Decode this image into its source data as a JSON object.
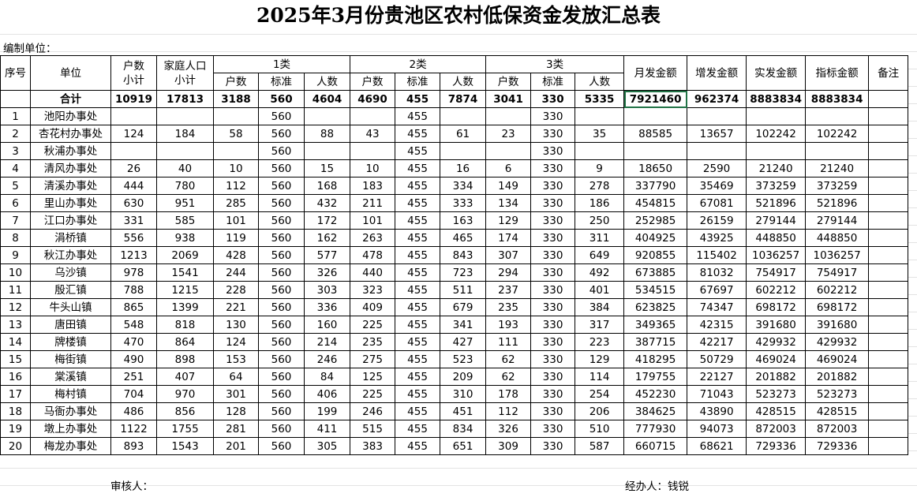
{
  "header": {
    "title": "2025年3月份贵池区农村低保资金发放汇总表",
    "unit_label": "编制单位：",
    "columns": {
      "seq": "序号",
      "unit": "单位",
      "households": [
        "户数",
        "小计"
      ],
      "population": [
        "家庭人口",
        "小计"
      ],
      "classes": [
        {
          "name": "1类",
          "sub": [
            "户数",
            "标准",
            "人数"
          ]
        },
        {
          "name": "2类",
          "sub": [
            "户数",
            "标准",
            "人数"
          ]
        },
        {
          "name": "3类",
          "sub": [
            "户数",
            "标准",
            "人数"
          ]
        }
      ],
      "amounts": [
        "月发金额",
        "增发金额",
        "实发金额",
        "指标金额"
      ],
      "remark": "备注"
    }
  },
  "table": {
    "total": {
      "label": "合计",
      "values": [
        10919,
        17813,
        3188,
        560,
        4604,
        4690,
        455,
        7874,
        3041,
        330,
        5335,
        7921460,
        962374,
        8883834,
        8883834
      ]
    },
    "rows": [
      {
        "no": 1,
        "unit": "池阳办事处",
        "values": [
          null,
          null,
          null,
          560,
          null,
          null,
          455,
          null,
          null,
          330,
          null,
          null,
          null,
          null,
          null
        ]
      },
      {
        "no": 2,
        "unit": "杏花村办事处",
        "values": [
          124,
          184,
          58,
          560,
          88,
          43,
          455,
          61,
          23,
          330,
          35,
          88585,
          13657,
          102242,
          102242
        ]
      },
      {
        "no": 3,
        "unit": "秋浦办事处",
        "values": [
          null,
          null,
          null,
          560,
          null,
          null,
          455,
          null,
          null,
          330,
          null,
          null,
          null,
          null,
          null
        ]
      },
      {
        "no": 4,
        "unit": "清风办事处",
        "values": [
          26,
          40,
          10,
          560,
          15,
          10,
          455,
          16,
          6,
          330,
          9,
          18650,
          2590,
          21240,
          21240
        ]
      },
      {
        "no": 5,
        "unit": "清溪办事处",
        "values": [
          444,
          780,
          112,
          560,
          168,
          183,
          455,
          334,
          149,
          330,
          278,
          337790,
          35469,
          373259,
          373259
        ]
      },
      {
        "no": 6,
        "unit": "里山办事处",
        "values": [
          630,
          951,
          285,
          560,
          432,
          211,
          455,
          333,
          134,
          330,
          186,
          454815,
          67081,
          521896,
          521896
        ]
      },
      {
        "no": 7,
        "unit": "江口办事处",
        "values": [
          331,
          585,
          101,
          560,
          172,
          101,
          455,
          163,
          129,
          330,
          250,
          252985,
          26159,
          279144,
          279144
        ]
      },
      {
        "no": 8,
        "unit": "涓桥镇",
        "values": [
          556,
          938,
          119,
          560,
          162,
          263,
          455,
          465,
          174,
          330,
          311,
          404925,
          43925,
          448850,
          448850
        ]
      },
      {
        "no": 9,
        "unit": "秋江办事处",
        "values": [
          1213,
          2069,
          428,
          560,
          577,
          478,
          455,
          843,
          307,
          330,
          649,
          920855,
          115402,
          1036257,
          1036257
        ]
      },
      {
        "no": 10,
        "unit": "乌沙镇",
        "values": [
          978,
          1541,
          244,
          560,
          326,
          440,
          455,
          723,
          294,
          330,
          492,
          673885,
          81032,
          754917,
          754917
        ]
      },
      {
        "no": 11,
        "unit": "殷汇镇",
        "values": [
          788,
          1215,
          228,
          560,
          303,
          323,
          455,
          511,
          237,
          330,
          401,
          534515,
          67697,
          602212,
          602212
        ]
      },
      {
        "no": 12,
        "unit": "牛头山镇",
        "values": [
          865,
          1399,
          221,
          560,
          336,
          409,
          455,
          679,
          235,
          330,
          384,
          623825,
          74347,
          698172,
          698172
        ]
      },
      {
        "no": 13,
        "unit": "唐田镇",
        "values": [
          548,
          818,
          130,
          560,
          160,
          225,
          455,
          341,
          193,
          330,
          317,
          349365,
          42315,
          391680,
          391680
        ]
      },
      {
        "no": 14,
        "unit": "牌楼镇",
        "values": [
          470,
          864,
          124,
          560,
          214,
          235,
          455,
          427,
          111,
          330,
          223,
          387715,
          42217,
          429932,
          429932
        ]
      },
      {
        "no": 15,
        "unit": "梅街镇",
        "values": [
          490,
          898,
          153,
          560,
          246,
          275,
          455,
          523,
          62,
          330,
          129,
          418295,
          50729,
          469024,
          469024
        ]
      },
      {
        "no": 16,
        "unit": "棠溪镇",
        "values": [
          251,
          407,
          64,
          560,
          84,
          125,
          455,
          209,
          62,
          330,
          114,
          179755,
          22127,
          201882,
          201882
        ]
      },
      {
        "no": 17,
        "unit": "梅村镇",
        "values": [
          704,
          970,
          301,
          560,
          406,
          225,
          455,
          310,
          178,
          330,
          254,
          452230,
          71043,
          523273,
          523273
        ]
      },
      {
        "no": 18,
        "unit": "马衙办事处",
        "values": [
          486,
          856,
          128,
          560,
          199,
          246,
          455,
          451,
          112,
          330,
          206,
          384625,
          43890,
          428515,
          428515
        ]
      },
      {
        "no": 19,
        "unit": "墩上办事处",
        "values": [
          1122,
          1755,
          281,
          560,
          411,
          515,
          455,
          834,
          326,
          330,
          510,
          777930,
          94073,
          872003,
          872003
        ]
      },
      {
        "no": 20,
        "unit": "梅龙办事处",
        "values": [
          893,
          1543,
          201,
          560,
          305,
          383,
          455,
          651,
          309,
          330,
          587,
          660715,
          68621,
          729336,
          729336
        ]
      }
    ]
  },
  "footer": {
    "reviewer": "审核人：",
    "handler": "经办人：钱锐"
  }
}
